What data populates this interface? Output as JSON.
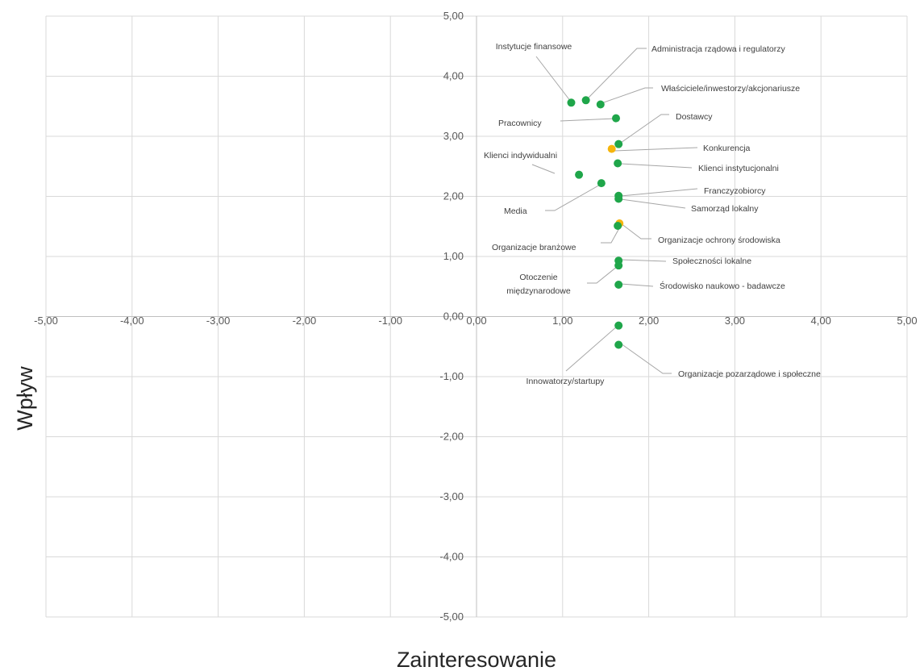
{
  "chart_data": {
    "type": "scatter",
    "xlabel": "Zainteresowanie",
    "ylabel": "Wpływ",
    "xlim": [
      -5,
      5
    ],
    "ylim": [
      -5,
      5
    ],
    "grid": true,
    "xticks": [
      "-5,00",
      "-4,00",
      "-3,00",
      "-2,00",
      "-1,00",
      "0,00",
      "1,00",
      "2,00",
      "3,00",
      "4,00",
      "5,00"
    ],
    "yticks": [
      "5,00",
      "4,00",
      "3,00",
      "2,00",
      "1,00",
      "0,00",
      "-1,00",
      "-2,00",
      "-3,00",
      "-4,00",
      "-5,00"
    ],
    "colors": {
      "green": "#1fa64a",
      "orange": "#f5b50c",
      "grid": "#d9d9d9",
      "leader": "#a6a6a6"
    },
    "points": [
      {
        "label": "Instytucje finansowe",
        "x": 1.1,
        "y": 3.56,
        "color": "green"
      },
      {
        "label": "Administracja rządowa i regulatorzy",
        "x": 1.27,
        "y": 3.6,
        "color": "green"
      },
      {
        "label": "Właściciele/inwestorzy/akcjonariusze",
        "x": 1.44,
        "y": 3.53,
        "color": "green"
      },
      {
        "label": "Pracownicy",
        "x": 1.62,
        "y": 3.3,
        "color": "green"
      },
      {
        "label": "Dostawcy",
        "x": 1.65,
        "y": 2.87,
        "color": "green"
      },
      {
        "label": "Konkurencja",
        "x": 1.57,
        "y": 2.79,
        "color": "orange"
      },
      {
        "label": "Klienci indywidualni",
        "x": 1.19,
        "y": 2.36,
        "color": "green"
      },
      {
        "label": "Klienci instytucjonalni",
        "x": 1.64,
        "y": 2.55,
        "color": "green"
      },
      {
        "label": "Media",
        "x": 1.45,
        "y": 2.22,
        "color": "green"
      },
      {
        "label": "Franczyzobiorcy",
        "x": 1.65,
        "y": 2.01,
        "color": "green"
      },
      {
        "label": "Samorząd lokalny",
        "x": 1.65,
        "y": 1.96,
        "color": "green"
      },
      {
        "label": "Organizacje ochrony środowiska",
        "x": 1.66,
        "y": 1.55,
        "color": "orange"
      },
      {
        "label": "Organizacje branżowe",
        "x": 1.64,
        "y": 1.51,
        "color": "green"
      },
      {
        "label": "Społeczności lokalne",
        "x": 1.65,
        "y": 0.93,
        "color": "green"
      },
      {
        "label": "Otoczenie\nmiędzynarodowe",
        "x": 1.65,
        "y": 0.85,
        "color": "green"
      },
      {
        "label": "Środowisko naukowo - badawcze",
        "x": 1.65,
        "y": 0.53,
        "color": "green"
      },
      {
        "label": "Innowatorzy/startupy",
        "x": 1.65,
        "y": -0.15,
        "color": "green"
      },
      {
        "label": "Organizacje pozarządowe i społeczne",
        "x": 1.65,
        "y": -0.47,
        "color": "green"
      }
    ]
  }
}
